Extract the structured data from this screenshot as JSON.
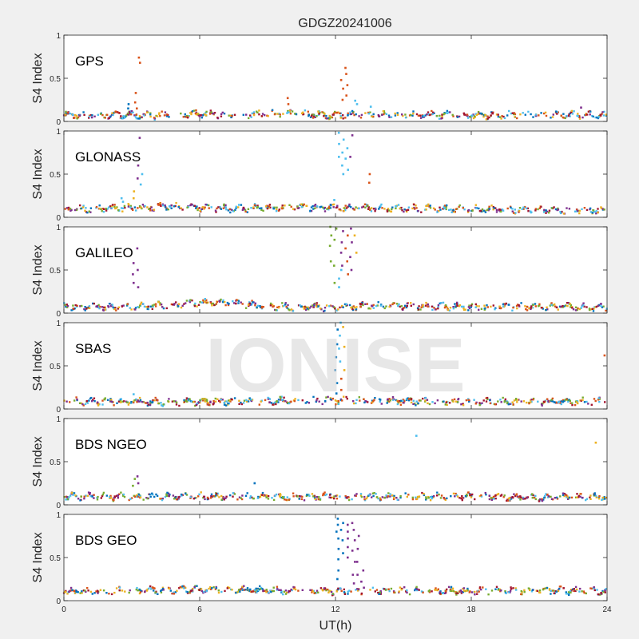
{
  "chart_data": {
    "type": "scatter",
    "title": "GDGZ20241006",
    "xlabel": "UT(h)",
    "ylabel": "S4 Index",
    "watermark": "IONISE",
    "xlim": [
      0,
      24
    ],
    "xticks": [
      "0",
      "6",
      "12",
      "18",
      "24"
    ],
    "ylim": [
      0,
      1
    ],
    "yticks": [
      "0",
      "0.5",
      "1"
    ],
    "grid": false,
    "series_colors": [
      "#0072bd",
      "#d95319",
      "#edb120",
      "#7e2f8e",
      "#77ac30",
      "#4dbeee",
      "#a2142f"
    ],
    "panels": [
      {
        "label": "GPS",
        "baseline": [
          [
            0,
            0.07
          ],
          [
            2,
            0.08
          ],
          [
            4,
            0.07
          ],
          [
            6,
            0.09
          ],
          [
            8,
            0.08
          ],
          [
            10,
            0.09
          ],
          [
            12,
            0.07
          ],
          [
            14,
            0.08
          ],
          [
            18,
            0.07
          ],
          [
            22,
            0.08
          ],
          [
            24,
            0.07
          ]
        ],
        "spikes": [
          {
            "x": 3.2,
            "y": [
              0.33,
              0.22,
              0.15
            ],
            "color": "#d95319"
          },
          {
            "x": 3.35,
            "y": [
              0.74,
              0.68
            ],
            "color": "#d95319"
          },
          {
            "x": 2.8,
            "y": [
              0.2,
              0.15
            ],
            "color": "#0072bd"
          },
          {
            "x": 9.9,
            "y": [
              0.27,
              0.2
            ],
            "color": "#d95319"
          },
          {
            "x": 12.3,
            "y": [
              0.25,
              0.38,
              0.48
            ],
            "color": "#d95319"
          },
          {
            "x": 12.5,
            "y": [
              0.62,
              0.55,
              0.42,
              0.3
            ],
            "color": "#d95319"
          },
          {
            "x": 12.9,
            "y": [
              0.24,
              0.2
            ],
            "color": "#4dbeee"
          },
          {
            "x": 13.6,
            "y": [
              0.17
            ],
            "color": "#4dbeee"
          },
          {
            "x": 22.9,
            "y": [
              0.16
            ],
            "color": "#7e2f8e"
          }
        ]
      },
      {
        "label": "GLONASS",
        "baseline": [
          [
            0,
            0.09
          ],
          [
            3,
            0.11
          ],
          [
            5,
            0.13
          ],
          [
            7,
            0.1
          ],
          [
            9,
            0.11
          ],
          [
            11,
            0.12
          ],
          [
            13,
            0.11
          ],
          [
            16,
            0.1
          ],
          [
            20,
            0.09
          ],
          [
            24,
            0.08
          ]
        ],
        "spikes": [
          {
            "x": 2.6,
            "y": [
              0.22,
              0.18
            ],
            "color": "#4dbeee"
          },
          {
            "x": 3.1,
            "y": [
              0.3,
              0.22
            ],
            "color": "#edb120"
          },
          {
            "x": 3.3,
            "y": [
              0.92,
              0.6,
              0.45
            ],
            "color": "#7e2f8e"
          },
          {
            "x": 3.45,
            "y": [
              0.5,
              0.38
            ],
            "color": "#4dbeee"
          },
          {
            "x": 12.1,
            "y": [
              0.98,
              0.85,
              0.7
            ],
            "color": "#4dbeee"
          },
          {
            "x": 12.3,
            "y": [
              0.9,
              0.75,
              0.6,
              0.5
            ],
            "color": "#4dbeee"
          },
          {
            "x": 12.5,
            "y": [
              0.8,
              0.68,
              0.55
            ],
            "color": "#4dbeee"
          },
          {
            "x": 12.7,
            "y": [
              0.95,
              0.7
            ],
            "color": "#7e2f8e"
          },
          {
            "x": 13.5,
            "y": [
              0.5,
              0.4
            ],
            "color": "#d95319"
          },
          {
            "x": 12.0,
            "y": [
              0.2
            ],
            "color": "#4dbeee"
          }
        ]
      },
      {
        "label": "GALILEO",
        "baseline": [
          [
            0,
            0.08
          ],
          [
            2,
            0.07
          ],
          [
            4,
            0.08
          ],
          [
            6,
            0.12
          ],
          [
            7,
            0.13
          ],
          [
            8,
            0.1
          ],
          [
            10,
            0.07
          ],
          [
            12,
            0.07
          ],
          [
            14,
            0.09
          ],
          [
            18,
            0.07
          ],
          [
            22,
            0.08
          ],
          [
            24,
            0.06
          ]
        ],
        "spikes": [
          {
            "x": 3.1,
            "y": [
              0.58,
              0.45,
              0.35
            ],
            "color": "#7e2f8e"
          },
          {
            "x": 3.3,
            "y": [
              0.75,
              0.5,
              0.3
            ],
            "color": "#7e2f8e"
          },
          {
            "x": 11.8,
            "y": [
              1.0,
              0.9,
              0.78,
              0.6
            ],
            "color": "#77ac30"
          },
          {
            "x": 12.0,
            "y": [
              0.98,
              0.85,
              0.55,
              0.35
            ],
            "color": "#77ac30"
          },
          {
            "x": 12.3,
            "y": [
              0.95,
              0.82,
              0.7,
              0.55
            ],
            "color": "#7e2f8e"
          },
          {
            "x": 12.5,
            "y": [
              0.9,
              0.75,
              0.6,
              0.45
            ],
            "color": "#d95319"
          },
          {
            "x": 12.7,
            "y": [
              0.98,
              0.82,
              0.65,
              0.5
            ],
            "color": "#7e2f8e"
          },
          {
            "x": 12.9,
            "y": [
              0.9,
              0.7
            ],
            "color": "#edb120"
          },
          {
            "x": 12.2,
            "y": [
              0.5,
              0.4,
              0.3
            ],
            "color": "#4dbeee"
          }
        ]
      },
      {
        "label": "SBAS",
        "baseline": [
          [
            0,
            0.09
          ],
          [
            4,
            0.08
          ],
          [
            8,
            0.09
          ],
          [
            12,
            0.1
          ],
          [
            16,
            0.09
          ],
          [
            20,
            0.08
          ],
          [
            24,
            0.09
          ]
        ],
        "spikes": [
          {
            "x": 3.1,
            "y": [
              0.17
            ],
            "color": "#4dbeee"
          },
          {
            "x": 12.05,
            "y": [
              0.92,
              0.75,
              0.6,
              0.45,
              0.3,
              0.18
            ],
            "color": "#0072bd"
          },
          {
            "x": 12.2,
            "y": [
              1.0,
              0.85,
              0.7,
              0.55
            ],
            "color": "#4dbeee"
          },
          {
            "x": 12.35,
            "y": [
              0.95,
              0.72,
              0.45
            ],
            "color": "#edb120"
          },
          {
            "x": 12.2,
            "y": [
              0.35,
              0.22
            ],
            "color": "#d95319"
          },
          {
            "x": 23.95,
            "y": [
              0.62
            ],
            "color": "#d95319"
          }
        ]
      },
      {
        "label": "BDS NGEO",
        "baseline": [
          [
            0,
            0.1
          ],
          [
            3,
            0.09
          ],
          [
            6,
            0.1
          ],
          [
            9,
            0.09
          ],
          [
            12,
            0.1
          ],
          [
            15,
            0.09
          ],
          [
            18,
            0.1
          ],
          [
            21,
            0.08
          ],
          [
            24,
            0.09
          ]
        ],
        "spikes": [
          {
            "x": 3.1,
            "y": [
              0.3,
              0.22
            ],
            "color": "#77ac30"
          },
          {
            "x": 3.3,
            "y": [
              0.33,
              0.25
            ],
            "color": "#7e2f8e"
          },
          {
            "x": 8.4,
            "y": [
              0.25
            ],
            "color": "#0072bd"
          },
          {
            "x": 15.6,
            "y": [
              0.8
            ],
            "color": "#4dbeee"
          },
          {
            "x": 23.5,
            "y": [
              0.72
            ],
            "color": "#edb120"
          }
        ]
      },
      {
        "label": "BDS GEO",
        "baseline": [
          [
            0,
            0.1
          ],
          [
            3,
            0.12
          ],
          [
            6,
            0.13
          ],
          [
            9,
            0.12
          ],
          [
            12,
            0.11
          ],
          [
            15,
            0.12
          ],
          [
            18,
            0.11
          ],
          [
            21,
            0.12
          ],
          [
            24,
            0.11
          ]
        ],
        "spikes": [
          {
            "x": 12.1,
            "y": [
              0.95,
              0.88,
              0.8,
              0.72,
              0.6,
              0.48,
              0.35,
              0.25
            ],
            "color": "#0072bd"
          },
          {
            "x": 12.3,
            "y": [
              0.9,
              0.82,
              0.7,
              0.55
            ],
            "color": "#0072bd"
          },
          {
            "x": 12.6,
            "y": [
              0.88,
              0.8,
              0.72,
              0.62,
              0.5
            ],
            "color": "#7e2f8e"
          },
          {
            "x": 12.8,
            "y": [
              0.9,
              0.82,
              0.7,
              0.58,
              0.45,
              0.3,
              0.2
            ],
            "color": "#7e2f8e"
          },
          {
            "x": 13.0,
            "y": [
              0.75,
              0.6,
              0.45,
              0.3
            ],
            "color": "#7e2f8e"
          },
          {
            "x": 13.2,
            "y": [
              0.35,
              0.22,
              0.15
            ],
            "color": "#7e2f8e"
          }
        ]
      }
    ]
  }
}
